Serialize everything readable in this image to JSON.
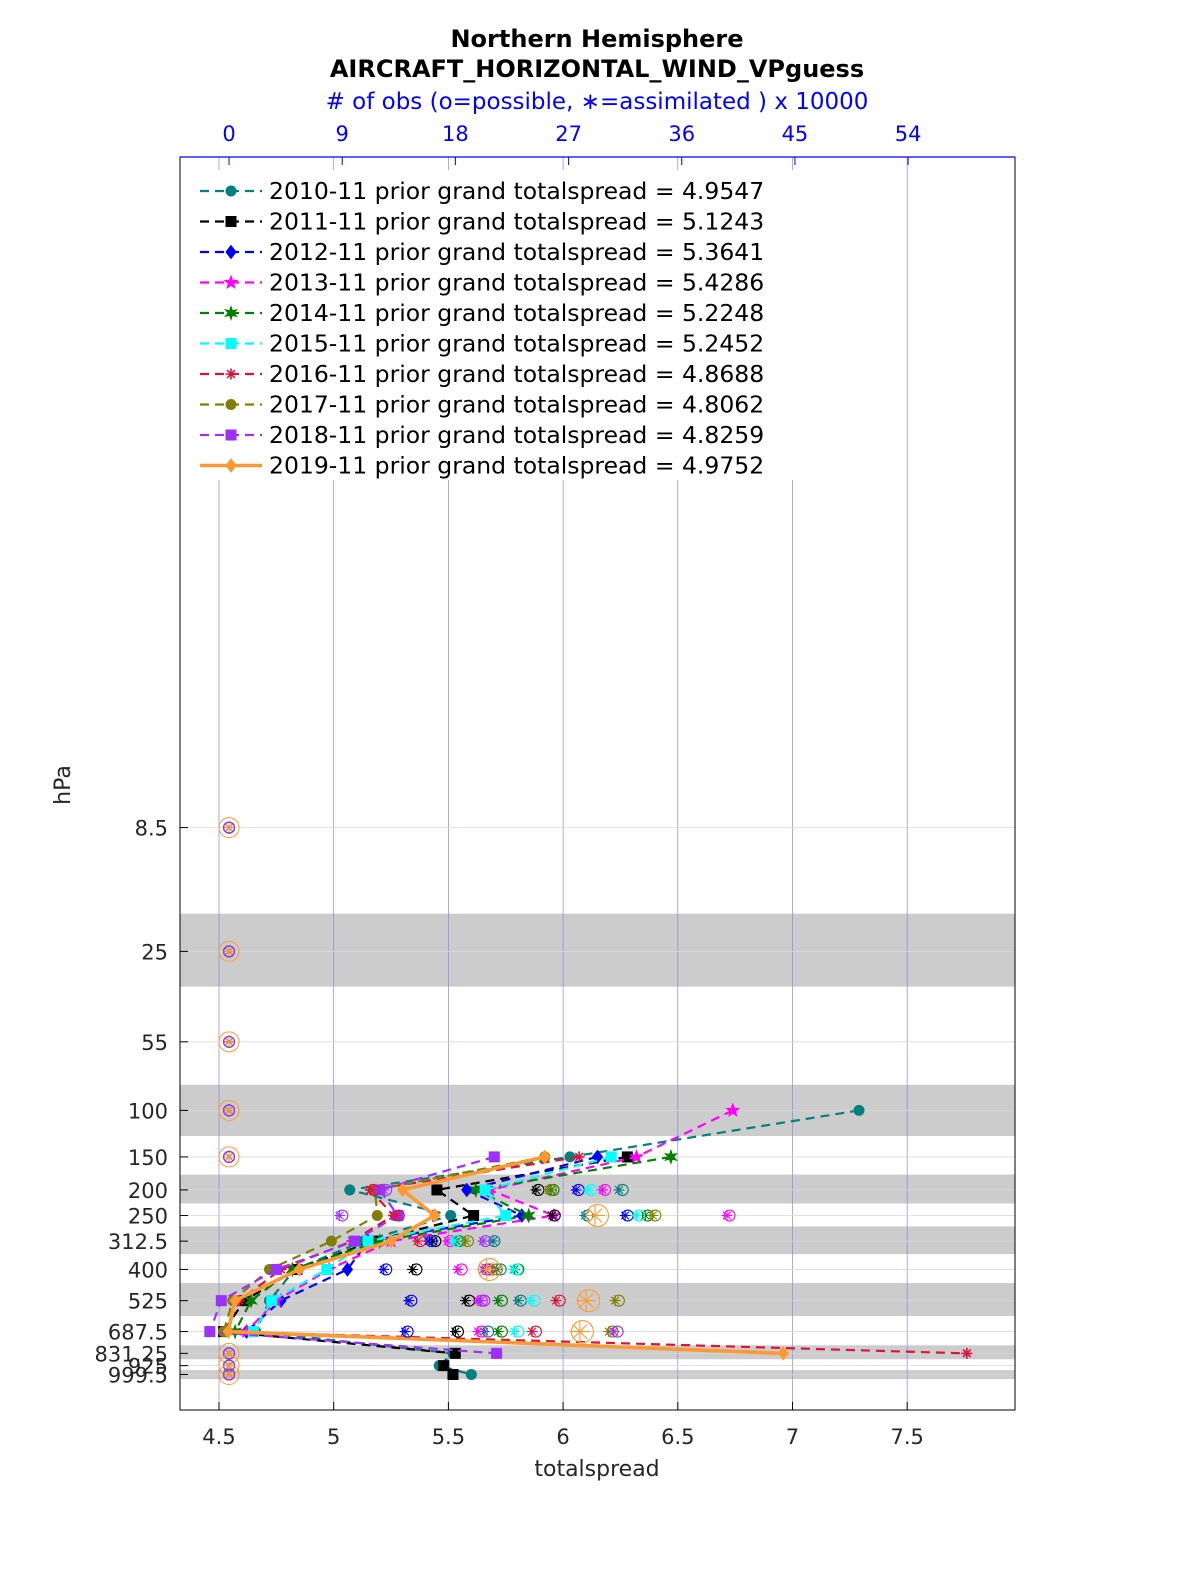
{
  "chart_data": {
    "type": "line",
    "title": "Northern Hemisphere",
    "subtitle": "AIRCRAFT_HORIZONTAL_WIND_VPguess",
    "top_axis_label": "# of obs (o=possible, ∗=assimilated ) x 10000",
    "xlabel": "totalspread",
    "ylabel": "hPa",
    "xlim": [
      4.33,
      7.97
    ],
    "x_ticks": [
      "4.5",
      "5",
      "5.5",
      "6",
      "6.5",
      "7",
      "7.5"
    ],
    "top_ticks": [
      "0",
      "9",
      "18",
      "27",
      "36",
      "45",
      "54"
    ],
    "top_axis_lim": [
      -3.9,
      62.5
    ],
    "y_ticks": [
      "8.5",
      "25",
      "55",
      "100",
      "150",
      "200",
      "250",
      "312.5",
      "400",
      "525",
      "687.5",
      "831.25",
      "925",
      "999.5"
    ],
    "levels": [
      8.5,
      25,
      55,
      100,
      150,
      200,
      250,
      312.5,
      400,
      525,
      687.5,
      831.25,
      925,
      999.5
    ],
    "shaded_bands_hpa": [
      [
        18,
        34
      ],
      [
        80,
        125
      ],
      [
        175,
        225
      ],
      [
        275,
        350
      ],
      [
        450,
        600
      ],
      [
        775,
        875
      ],
      [
        962,
        1040
      ]
    ],
    "legend_position": "top-left",
    "series": [
      {
        "name": "2010-11 prior grand totalspread = 4.9547",
        "color": "#008080",
        "style": "dashed",
        "marker": "circle",
        "points": [
          [
            7.29,
            100
          ],
          [
            6.03,
            150
          ],
          [
            5.07,
            200
          ],
          [
            5.51,
            250
          ],
          [
            5.13,
            312.5
          ],
          [
            4.83,
            400
          ],
          [
            4.72,
            525
          ],
          [
            4.66,
            687.5
          ],
          [
            5.52,
            831.25
          ],
          [
            5.46,
            925
          ],
          [
            5.6,
            999.5
          ]
        ],
        "obs_possible": [
          [
            31.3,
            200
          ],
          [
            28.5,
            250
          ],
          [
            21.1,
            312.5
          ],
          [
            21.6,
            400
          ],
          [
            23.2,
            525
          ],
          [
            20.6,
            687.5
          ]
        ],
        "obs_assim": [
          [
            31.0,
            200
          ],
          [
            28.3,
            250
          ],
          [
            21.0,
            312.5
          ],
          [
            21.3,
            400
          ],
          [
            23.0,
            525
          ],
          [
            20.3,
            687.5
          ]
        ]
      },
      {
        "name": "2011-11 prior grand totalspread = 5.1243",
        "color": "#000000",
        "style": "dashed",
        "marker": "square",
        "points": [
          [
            6.28,
            150
          ],
          [
            5.45,
            200
          ],
          [
            5.61,
            250
          ],
          [
            5.17,
            312.5
          ],
          [
            4.84,
            400
          ],
          [
            4.61,
            525
          ],
          [
            4.52,
            687.5
          ],
          [
            5.53,
            831.25
          ],
          [
            5.48,
            925
          ],
          [
            5.52,
            999.5
          ]
        ],
        "obs_possible": [
          [
            24.6,
            200
          ],
          [
            25.9,
            250
          ],
          [
            16.4,
            312.5
          ],
          [
            14.9,
            400
          ],
          [
            19.1,
            525
          ],
          [
            18.2,
            687.5
          ]
        ],
        "obs_assim": [
          [
            24.4,
            200
          ],
          [
            25.7,
            250
          ],
          [
            16.2,
            312.5
          ],
          [
            14.6,
            400
          ],
          [
            18.8,
            525
          ],
          [
            18.0,
            687.5
          ]
        ]
      },
      {
        "name": "2012-11 prior grand totalspread = 5.3641",
        "color": "#0000ff",
        "style": "dashed",
        "marker": "diamond",
        "points": [
          [
            6.15,
            150
          ],
          [
            5.58,
            200
          ],
          [
            5.82,
            250
          ],
          [
            5.15,
            312.5
          ],
          [
            5.06,
            400
          ],
          [
            4.77,
            525
          ],
          [
            4.62,
            687.5
          ]
        ],
        "obs_possible": [
          [
            27.8,
            200
          ],
          [
            31.7,
            250
          ],
          [
            16.1,
            312.5
          ],
          [
            12.5,
            400
          ],
          [
            14.5,
            525
          ],
          [
            14.2,
            687.5
          ]
        ],
        "obs_assim": [
          [
            27.6,
            200
          ],
          [
            31.5,
            250
          ],
          [
            15.9,
            312.5
          ],
          [
            12.3,
            400
          ],
          [
            14.3,
            525
          ],
          [
            14.0,
            687.5
          ]
        ]
      },
      {
        "name": "2013-11 prior grand totalspread = 5.4286",
        "color": "#ff00ff",
        "style": "dashed",
        "marker": "star",
        "points": [
          [
            6.74,
            100
          ],
          [
            6.32,
            150
          ],
          [
            5.68,
            200
          ],
          [
            5.96,
            250
          ],
          [
            5.25,
            312.5
          ],
          [
            4.98,
            400
          ],
          [
            4.75,
            525
          ],
          [
            4.62,
            687.5
          ]
        ],
        "obs_possible": [
          [
            29.9,
            200
          ],
          [
            39.8,
            250
          ],
          [
            17.6,
            312.5
          ],
          [
            18.5,
            400
          ],
          [
            20.1,
            525
          ],
          [
            20.1,
            687.5
          ]
        ],
        "obs_assim": [
          [
            29.7,
            200
          ],
          [
            39.6,
            250
          ],
          [
            17.4,
            312.5
          ],
          [
            18.2,
            400
          ],
          [
            19.8,
            525
          ],
          [
            19.8,
            687.5
          ]
        ]
      },
      {
        "name": "2014-11 prior grand totalspread = 5.2248",
        "color": "#008000",
        "style": "dashed",
        "marker": "hexagram",
        "points": [
          [
            6.47,
            150
          ],
          [
            5.62,
            200
          ],
          [
            5.85,
            250
          ],
          [
            5.2,
            312.5
          ],
          [
            4.82,
            400
          ],
          [
            4.64,
            525
          ],
          [
            4.57,
            687.5
          ]
        ],
        "obs_possible": [
          [
            25.8,
            200
          ],
          [
            33.3,
            250
          ],
          [
            18.3,
            312.5
          ],
          [
            23.0,
            400
          ],
          [
            21.7,
            525
          ],
          [
            21.7,
            687.5
          ]
        ],
        "obs_assim": [
          [
            25.6,
            200
          ],
          [
            33.1,
            250
          ],
          [
            18.1,
            312.5
          ],
          [
            22.7,
            400
          ],
          [
            21.4,
            525
          ],
          [
            21.4,
            687.5
          ]
        ]
      },
      {
        "name": "2015-11 prior grand totalspread = 5.2452",
        "color": "#00ffff",
        "style": "dashed",
        "marker": "square",
        "points": [
          [
            6.21,
            150
          ],
          [
            5.66,
            200
          ],
          [
            5.75,
            250
          ],
          [
            5.15,
            312.5
          ],
          [
            4.97,
            400
          ],
          [
            4.73,
            525
          ],
          [
            4.65,
            687.5
          ]
        ],
        "obs_possible": [
          [
            28.8,
            200
          ],
          [
            32.6,
            250
          ],
          [
            18.1,
            312.5
          ],
          [
            22.9,
            400
          ],
          [
            24.3,
            525
          ],
          [
            23.0,
            687.5
          ]
        ],
        "obs_assim": [
          [
            28.6,
            200
          ],
          [
            32.4,
            250
          ],
          [
            17.9,
            312.5
          ],
          [
            22.6,
            400
          ],
          [
            24.0,
            525
          ],
          [
            22.7,
            687.5
          ]
        ]
      },
      {
        "name": "2016-11 prior grand totalspread = 4.8688",
        "color": "#dc143c",
        "style": "dashed",
        "marker": "asterisk",
        "points": [
          [
            6.07,
            150
          ],
          [
            5.16,
            200
          ],
          [
            5.26,
            250
          ],
          [
            5.08,
            312.5
          ],
          [
            4.77,
            400
          ],
          [
            4.59,
            525
          ],
          [
            4.52,
            687.5
          ],
          [
            7.76,
            831.25
          ]
        ],
        "obs_possible": [
          [
            11.5,
            200
          ],
          [
            13.5,
            250
          ],
          [
            15.2,
            312.5
          ],
          [
            20.7,
            400
          ],
          [
            26.3,
            525
          ],
          [
            24.4,
            687.5
          ]
        ],
        "obs_assim": [
          [
            11.3,
            200
          ],
          [
            13.3,
            250
          ],
          [
            15.0,
            312.5
          ],
          [
            20.4,
            400
          ],
          [
            26.0,
            525
          ],
          [
            24.1,
            687.5
          ]
        ]
      },
      {
        "name": "2017-11 prior grand totalspread = 4.8062",
        "color": "#808000",
        "style": "dashed",
        "marker": "circle",
        "points": [
          [
            5.92,
            150
          ],
          [
            5.18,
            200
          ],
          [
            5.19,
            250
          ],
          [
            4.99,
            312.5
          ],
          [
            4.72,
            400
          ],
          [
            4.56,
            525
          ],
          [
            4.52,
            687.5
          ]
        ],
        "obs_possible": [
          [
            25.6,
            200
          ],
          [
            33.9,
            250
          ],
          [
            19.0,
            312.5
          ],
          [
            21.3,
            400
          ],
          [
            31.0,
            525
          ],
          [
            30.5,
            687.5
          ]
        ],
        "obs_assim": [
          [
            25.4,
            200
          ],
          [
            33.7,
            250
          ],
          [
            18.8,
            312.5
          ],
          [
            21.0,
            400
          ],
          [
            30.7,
            525
          ],
          [
            30.2,
            687.5
          ]
        ]
      },
      {
        "name": "2018-11 prior grand totalspread = 4.8259",
        "color": "#9b30ff",
        "style": "dashed",
        "marker": "square",
        "points": [
          [
            5.7,
            150
          ],
          [
            5.2,
            200
          ],
          [
            5.28,
            250
          ],
          [
            5.09,
            312.5
          ],
          [
            4.75,
            400
          ],
          [
            4.51,
            525
          ],
          [
            4.46,
            687.5
          ],
          [
            5.71,
            831.25
          ]
        ],
        "obs_possible": [
          [
            12.5,
            200
          ],
          [
            9.0,
            250
          ],
          [
            20.4,
            312.5
          ],
          [
            20.5,
            400
          ],
          [
            20.3,
            525
          ],
          [
            30.9,
            687.5
          ]
        ],
        "obs_assim": [
          [
            12.3,
            200
          ],
          [
            8.8,
            250
          ],
          [
            20.2,
            312.5
          ],
          [
            20.2,
            400
          ],
          [
            20.0,
            525
          ],
          [
            30.6,
            687.5
          ]
        ]
      },
      {
        "name": "2019-11 prior grand totalspread = 4.9752",
        "color": "#ff9933",
        "style": "solid",
        "marker": "diamond",
        "points": [
          [
            5.92,
            150
          ],
          [
            5.3,
            200
          ],
          [
            5.44,
            250
          ],
          [
            5.25,
            312.5
          ],
          [
            4.85,
            400
          ],
          [
            4.57,
            525
          ],
          [
            4.54,
            687.5
          ],
          [
            6.96,
            831.25
          ]
        ],
        "obs_possible": [
          [
            29.3,
            250
          ],
          [
            20.7,
            400
          ],
          [
            28.6,
            525
          ],
          [
            28.1,
            687.5
          ]
        ],
        "obs_assim": [
          [
            29.1,
            250
          ],
          [
            20.5,
            400
          ],
          [
            28.4,
            525
          ],
          [
            27.9,
            687.5
          ]
        ]
      }
    ],
    "zero_obs_levels": [
      8.5,
      25,
      55,
      100,
      150,
      831.25,
      925,
      999.5
    ]
  }
}
